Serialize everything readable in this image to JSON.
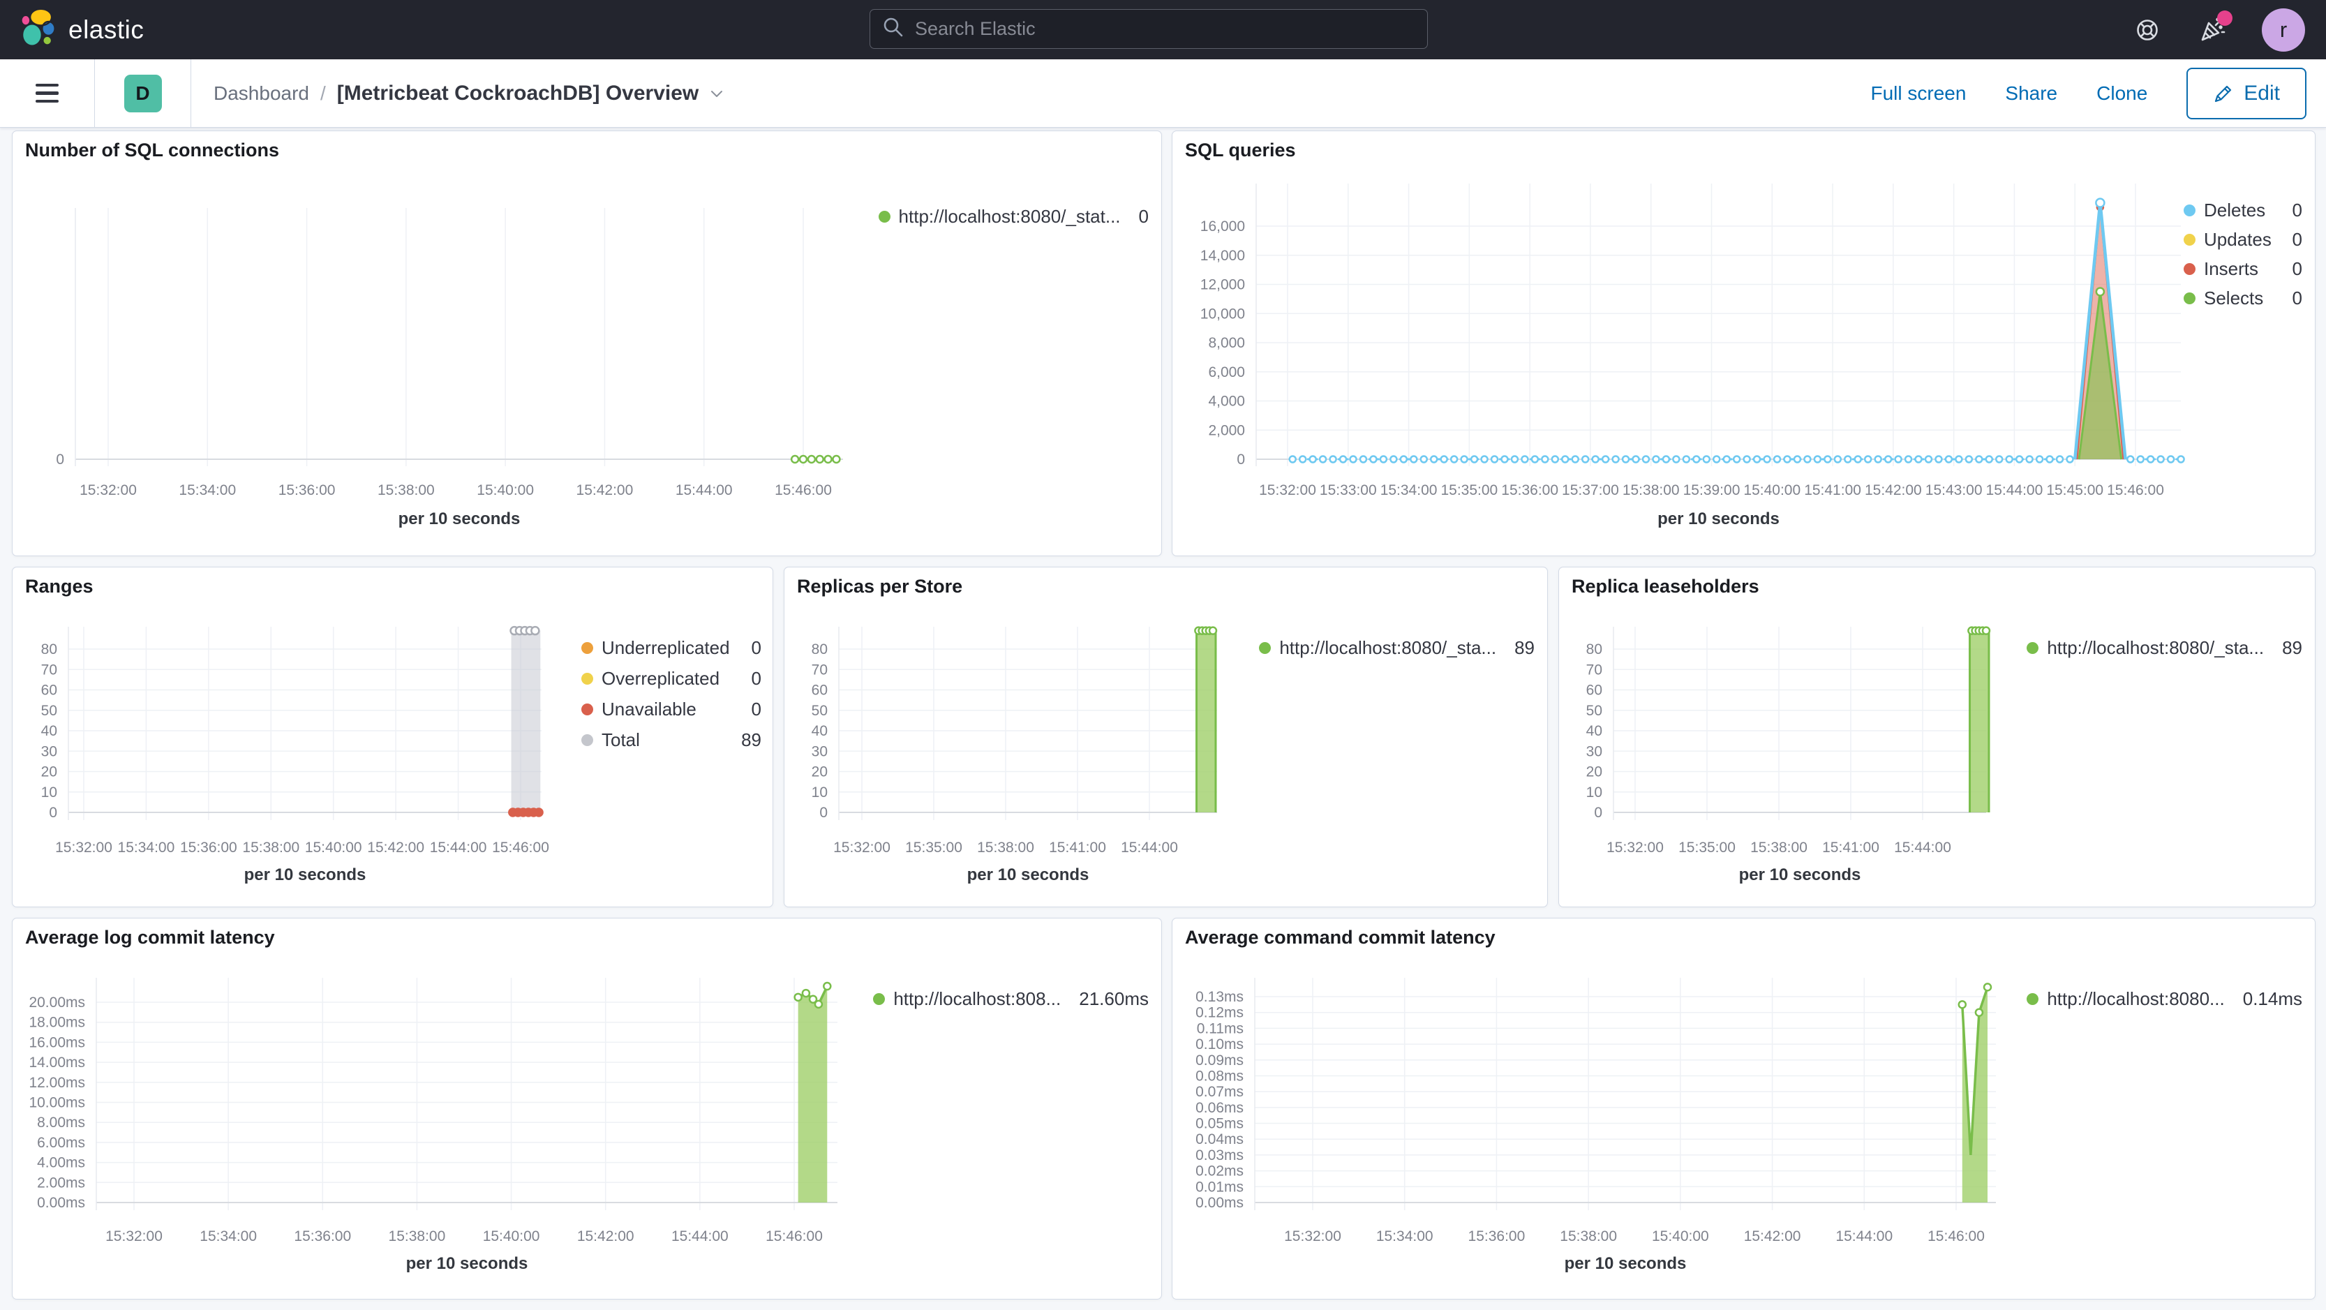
{
  "header": {
    "brand": "elastic",
    "search_placeholder": "Search Elastic",
    "avatar_initial": "r"
  },
  "toolbar": {
    "space_initial": "D",
    "breadcrumb_root": "Dashboard",
    "breadcrumb_sep": "/",
    "title": "[Metricbeat CockroachDB] Overview",
    "actions": {
      "full_screen": "Full screen",
      "share": "Share",
      "clone": "Clone",
      "edit": "Edit"
    }
  },
  "colors": {
    "green": "#79BD4A",
    "blue": "#6EC9F1",
    "yellow": "#F0D24B",
    "red": "#D9604C",
    "orange": "#EDA03C",
    "gray": "#C4C6CC",
    "link_blue": "#006BB4",
    "accent_pink": "#E6418C",
    "space_teal": "#50BEA5"
  },
  "charts": [
    {
      "id": "sql_connections",
      "type": "line",
      "title": "Number of SQL connections",
      "xlabel": "per 10 seconds",
      "legend": [
        {
          "label": "http://localhost:8080/_stat...",
          "value": "0",
          "color": "#79BD4A"
        }
      ],
      "y_ticks": [
        {
          "v": 0,
          "label": "0"
        }
      ],
      "x_ticks": [
        {
          "t": 55920,
          "label": "15:32:00"
        },
        {
          "t": 56040,
          "label": "15:34:00"
        },
        {
          "t": 56160,
          "label": "15:36:00"
        },
        {
          "t": 56280,
          "label": "15:38:00"
        },
        {
          "t": 56400,
          "label": "15:40:00"
        },
        {
          "t": 56520,
          "label": "15:42:00"
        },
        {
          "t": 56640,
          "label": "15:44:00"
        },
        {
          "t": 56760,
          "label": "15:46:00"
        }
      ],
      "series": [
        {
          "name": "connections",
          "color": "#79BD4A",
          "lw": 3,
          "gen": {
            "from": 56750,
            "to": 56800,
            "step": 10,
            "v": 0
          },
          "markers": "all",
          "mr": 5
        }
      ]
    },
    {
      "id": "sql_queries",
      "type": "area",
      "title": "SQL queries",
      "xlabel": "per 10 seconds",
      "legend": [
        {
          "label": "Deletes",
          "value": "0",
          "color": "#6EC9F1"
        },
        {
          "label": "Updates",
          "value": "0",
          "color": "#F0D24B"
        },
        {
          "label": "Inserts",
          "value": "0",
          "color": "#D9604C"
        },
        {
          "label": "Selects",
          "value": "0",
          "color": "#79BD4A"
        }
      ],
      "y_ticks": [
        {
          "v": 0,
          "label": "0"
        },
        {
          "v": 2000,
          "label": "2,000"
        },
        {
          "v": 4000,
          "label": "4,000"
        },
        {
          "v": 6000,
          "label": "6,000"
        },
        {
          "v": 8000,
          "label": "8,000"
        },
        {
          "v": 10000,
          "label": "10,000"
        },
        {
          "v": 12000,
          "label": "12,000"
        },
        {
          "v": 14000,
          "label": "14,000"
        },
        {
          "v": 16000,
          "label": "16,000"
        }
      ],
      "x_ticks": [
        {
          "t": 55920,
          "label": "15:32:00"
        },
        {
          "t": 55980,
          "label": "15:33:00"
        },
        {
          "t": 56040,
          "label": "15:34:00"
        },
        {
          "t": 56100,
          "label": "15:35:00"
        },
        {
          "t": 56160,
          "label": "15:36:00"
        },
        {
          "t": 56220,
          "label": "15:37:00"
        },
        {
          "t": 56280,
          "label": "15:38:00"
        },
        {
          "t": 56340,
          "label": "15:39:00"
        },
        {
          "t": 56400,
          "label": "15:40:00"
        },
        {
          "t": 56460,
          "label": "15:41:00"
        },
        {
          "t": 56520,
          "label": "15:42:00"
        },
        {
          "t": 56580,
          "label": "15:43:00"
        },
        {
          "t": 56640,
          "label": "15:44:00"
        },
        {
          "t": 56700,
          "label": "15:45:00"
        },
        {
          "t": 56760,
          "label": "15:46:00"
        }
      ],
      "series": [
        {
          "name": "Inserts",
          "color": "#D9604C",
          "lw": 2.5,
          "fill": "rgba(222,104,83,0.5)",
          "points": [
            [
              56702,
              0
            ],
            [
              56725,
              17300
            ],
            [
              56748,
              0
            ]
          ],
          "markers": [
            1
          ],
          "solid": true,
          "mr": 4.5
        },
        {
          "name": "Selects",
          "color": "#79BD4A",
          "lw": 3,
          "fill": "rgba(134,196,83,0.65)",
          "points": [
            [
              56704,
              0
            ],
            [
              56725,
              11500
            ],
            [
              56746,
              0
            ]
          ],
          "markers": [
            1
          ],
          "mr": 5.5
        },
        {
          "name": "Deletes-spike",
          "color": "#6EC9F1",
          "lw": 4.5,
          "points": [
            [
              56700,
              0
            ],
            [
              56725,
              17600
            ],
            [
              56750,
              0
            ]
          ],
          "markers": [
            1
          ],
          "mr": 6
        },
        {
          "name": "Deletes",
          "color": "#6EC9F1",
          "lw": 3,
          "dash": true,
          "gen": {
            "from": 55925,
            "to": 56695,
            "step": 10,
            "v": 0
          },
          "markers": "all",
          "mr": 4.5
        },
        {
          "name": "Deletes-tail",
          "color": "#6EC9F1",
          "lw": 3,
          "dash": true,
          "gen": {
            "from": 56755,
            "to": 56805,
            "step": 10,
            "v": 0
          },
          "markers": "all",
          "mr": 4.5
        }
      ]
    },
    {
      "id": "ranges",
      "type": "area",
      "title": "Ranges",
      "xlabel": "per 10 seconds",
      "legend": [
        {
          "label": "Underreplicated",
          "value": "0",
          "color": "#EDA03C"
        },
        {
          "label": "Overreplicated",
          "value": "0",
          "color": "#F0D24B"
        },
        {
          "label": "Unavailable",
          "value": "0",
          "color": "#D9604C"
        },
        {
          "label": "Total",
          "value": "89",
          "color": "#C4C6CC"
        }
      ],
      "y_ticks": [
        {
          "v": 0,
          "label": "0"
        },
        {
          "v": 10,
          "label": "10"
        },
        {
          "v": 20,
          "label": "20"
        },
        {
          "v": 30,
          "label": "30"
        },
        {
          "v": 40,
          "label": "40"
        },
        {
          "v": 50,
          "label": "50"
        },
        {
          "v": 60,
          "label": "60"
        },
        {
          "v": 70,
          "label": "70"
        },
        {
          "v": 80,
          "label": "80"
        }
      ],
      "x_ticks": [
        {
          "t": 55920,
          "label": "15:32:00"
        },
        {
          "t": 56040,
          "label": "15:34:00"
        },
        {
          "t": 56160,
          "label": "15:36:00"
        },
        {
          "t": 56280,
          "label": "15:38:00"
        },
        {
          "t": 56400,
          "label": "15:40:00"
        },
        {
          "t": 56520,
          "label": "15:42:00"
        },
        {
          "t": 56640,
          "label": "15:44:00"
        },
        {
          "t": 56760,
          "label": "15:46:00"
        }
      ],
      "series": [
        {
          "name": "Total",
          "color": "none",
          "fill": "rgba(199,201,209,0.55)",
          "points": [
            [
              56742,
              0
            ],
            [
              56742,
              89
            ],
            [
              56798,
              89
            ],
            [
              56798,
              0
            ]
          ],
          "markers_at": [
            [
              56748,
              89
            ],
            [
              56758,
              89
            ],
            [
              56768,
              89
            ],
            [
              56778,
              89
            ],
            [
              56788,
              89
            ]
          ],
          "mcolor": "#A9ACB4",
          "mr": 5.5
        },
        {
          "name": "Unavailable",
          "color": "#D9604C",
          "lw": 3,
          "gen": {
            "from": 56745,
            "to": 56795,
            "step": 10,
            "v": 0
          },
          "markers": "all",
          "solid": true,
          "mr": 5.5
        }
      ]
    },
    {
      "id": "replicas",
      "type": "area",
      "title": "Replicas per Store",
      "xlabel": "per 10 seconds",
      "legend": [
        {
          "label": "http://localhost:8080/_sta...",
          "value": "89",
          "color": "#79BD4A"
        }
      ],
      "y_ticks": [
        {
          "v": 0,
          "label": "0"
        },
        {
          "v": 10,
          "label": "10"
        },
        {
          "v": 20,
          "label": "20"
        },
        {
          "v": 30,
          "label": "30"
        },
        {
          "v": 40,
          "label": "40"
        },
        {
          "v": 50,
          "label": "50"
        },
        {
          "v": 60,
          "label": "60"
        },
        {
          "v": 70,
          "label": "70"
        },
        {
          "v": 80,
          "label": "80"
        }
      ],
      "x_ticks": [
        {
          "t": 55920,
          "label": "15:32:00"
        },
        {
          "t": 56100,
          "label": "15:35:00"
        },
        {
          "t": 56280,
          "label": "15:38:00"
        },
        {
          "t": 56460,
          "label": "15:41:00"
        },
        {
          "t": 56640,
          "label": "15:44:00"
        }
      ],
      "series": [
        {
          "name": "replicas",
          "color": "#79BD4A",
          "lw": 3,
          "fill": "rgba(160,208,106,0.8)",
          "points": [
            [
              56758,
              0
            ],
            [
              56758,
              89
            ],
            [
              56806,
              89
            ],
            [
              56806,
              0
            ]
          ],
          "markers_at": [
            [
              56763,
              89
            ],
            [
              56772,
              89
            ],
            [
              56781,
              89
            ],
            [
              56790,
              89
            ],
            [
              56799,
              89
            ]
          ],
          "mr": 5
        }
      ]
    },
    {
      "id": "leaseholders",
      "type": "area",
      "title": "Replica leaseholders",
      "xlabel": "per 10 seconds",
      "legend": [
        {
          "label": "http://localhost:8080/_sta...",
          "value": "89",
          "color": "#79BD4A"
        }
      ],
      "y_ticks": [
        {
          "v": 0,
          "label": "0"
        },
        {
          "v": 10,
          "label": "10"
        },
        {
          "v": 20,
          "label": "20"
        },
        {
          "v": 30,
          "label": "30"
        },
        {
          "v": 40,
          "label": "40"
        },
        {
          "v": 50,
          "label": "50"
        },
        {
          "v": 60,
          "label": "60"
        },
        {
          "v": 70,
          "label": "70"
        },
        {
          "v": 80,
          "label": "80"
        }
      ],
      "x_ticks": [
        {
          "t": 55920,
          "label": "15:32:00"
        },
        {
          "t": 56100,
          "label": "15:35:00"
        },
        {
          "t": 56280,
          "label": "15:38:00"
        },
        {
          "t": 56460,
          "label": "15:41:00"
        },
        {
          "t": 56640,
          "label": "15:44:00"
        }
      ],
      "series": [
        {
          "name": "leaseholders",
          "color": "#79BD4A",
          "lw": 3,
          "fill": "rgba(160,208,106,0.8)",
          "points": [
            [
              56758,
              0
            ],
            [
              56758,
              89
            ],
            [
              56806,
              89
            ],
            [
              56806,
              0
            ]
          ],
          "markers_at": [
            [
              56763,
              89
            ],
            [
              56772,
              89
            ],
            [
              56781,
              89
            ],
            [
              56790,
              89
            ],
            [
              56799,
              89
            ]
          ],
          "mr": 5
        }
      ]
    },
    {
      "id": "log_latency",
      "type": "area",
      "title": "Average log commit latency",
      "xlabel": "per 10 seconds",
      "legend": [
        {
          "label": "http://localhost:808...",
          "value": "21.60ms",
          "color": "#79BD4A"
        }
      ],
      "y_ticks": [
        {
          "v": 0,
          "label": "0.00ms"
        },
        {
          "v": 2,
          "label": "2.00ms"
        },
        {
          "v": 4,
          "label": "4.00ms"
        },
        {
          "v": 6,
          "label": "6.00ms"
        },
        {
          "v": 8,
          "label": "8.00ms"
        },
        {
          "v": 10,
          "label": "10.00ms"
        },
        {
          "v": 12,
          "label": "12.00ms"
        },
        {
          "v": 14,
          "label": "14.00ms"
        },
        {
          "v": 16,
          "label": "16.00ms"
        },
        {
          "v": 18,
          "label": "18.00ms"
        },
        {
          "v": 20,
          "label": "20.00ms"
        }
      ],
      "x_ticks": [
        {
          "t": 55920,
          "label": "15:32:00"
        },
        {
          "t": 56040,
          "label": "15:34:00"
        },
        {
          "t": 56160,
          "label": "15:36:00"
        },
        {
          "t": 56280,
          "label": "15:38:00"
        },
        {
          "t": 56400,
          "label": "15:40:00"
        },
        {
          "t": 56520,
          "label": "15:42:00"
        },
        {
          "t": 56640,
          "label": "15:44:00"
        },
        {
          "t": 56760,
          "label": "15:46:00"
        }
      ],
      "series": [
        {
          "name": "log-latency",
          "color": "#79BD4A",
          "lw": 3.5,
          "fill": "rgba(160,208,106,0.8)",
          "points": [
            [
              56765,
              20.5
            ],
            [
              56775,
              20.9
            ],
            [
              56784,
              20.3
            ],
            [
              56791,
              19.8
            ],
            [
              56802,
              21.6
            ]
          ],
          "markers": "all",
          "mr": 5
        }
      ]
    },
    {
      "id": "cmd_latency",
      "type": "area",
      "title": "Average command commit latency",
      "xlabel": "per 10 seconds",
      "legend": [
        {
          "label": "http://localhost:8080...",
          "value": "0.14ms",
          "color": "#79BD4A"
        }
      ],
      "y_ticks": [
        {
          "v": 0,
          "label": "0.00ms"
        },
        {
          "v": 0.01,
          "label": "0.01ms"
        },
        {
          "v": 0.02,
          "label": "0.02ms"
        },
        {
          "v": 0.03,
          "label": "0.03ms"
        },
        {
          "v": 0.04,
          "label": "0.04ms"
        },
        {
          "v": 0.05,
          "label": "0.05ms"
        },
        {
          "v": 0.06,
          "label": "0.06ms"
        },
        {
          "v": 0.07,
          "label": "0.07ms"
        },
        {
          "v": 0.08,
          "label": "0.08ms"
        },
        {
          "v": 0.09,
          "label": "0.09ms"
        },
        {
          "v": 0.1,
          "label": "0.10ms"
        },
        {
          "v": 0.11,
          "label": "0.11ms"
        },
        {
          "v": 0.12,
          "label": "0.12ms"
        },
        {
          "v": 0.13,
          "label": "0.13ms"
        }
      ],
      "x_ticks": [
        {
          "t": 55920,
          "label": "15:32:00"
        },
        {
          "t": 56040,
          "label": "15:34:00"
        },
        {
          "t": 56160,
          "label": "15:36:00"
        },
        {
          "t": 56280,
          "label": "15:38:00"
        },
        {
          "t": 56400,
          "label": "15:40:00"
        },
        {
          "t": 56520,
          "label": "15:42:00"
        },
        {
          "t": 56640,
          "label": "15:44:00"
        },
        {
          "t": 56760,
          "label": "15:46:00"
        }
      ],
      "series": [
        {
          "name": "cmd-latency",
          "color": "#79BD4A",
          "lw": 3.5,
          "fill": "rgba(160,208,106,0.8)",
          "points": [
            [
              56768,
              0.125
            ],
            [
              56779,
              0.03
            ],
            [
              56790,
              0.12
            ],
            [
              56801,
              0.136
            ]
          ],
          "markers": [
            0,
            2,
            3
          ],
          "mr": 5
        }
      ]
    }
  ]
}
